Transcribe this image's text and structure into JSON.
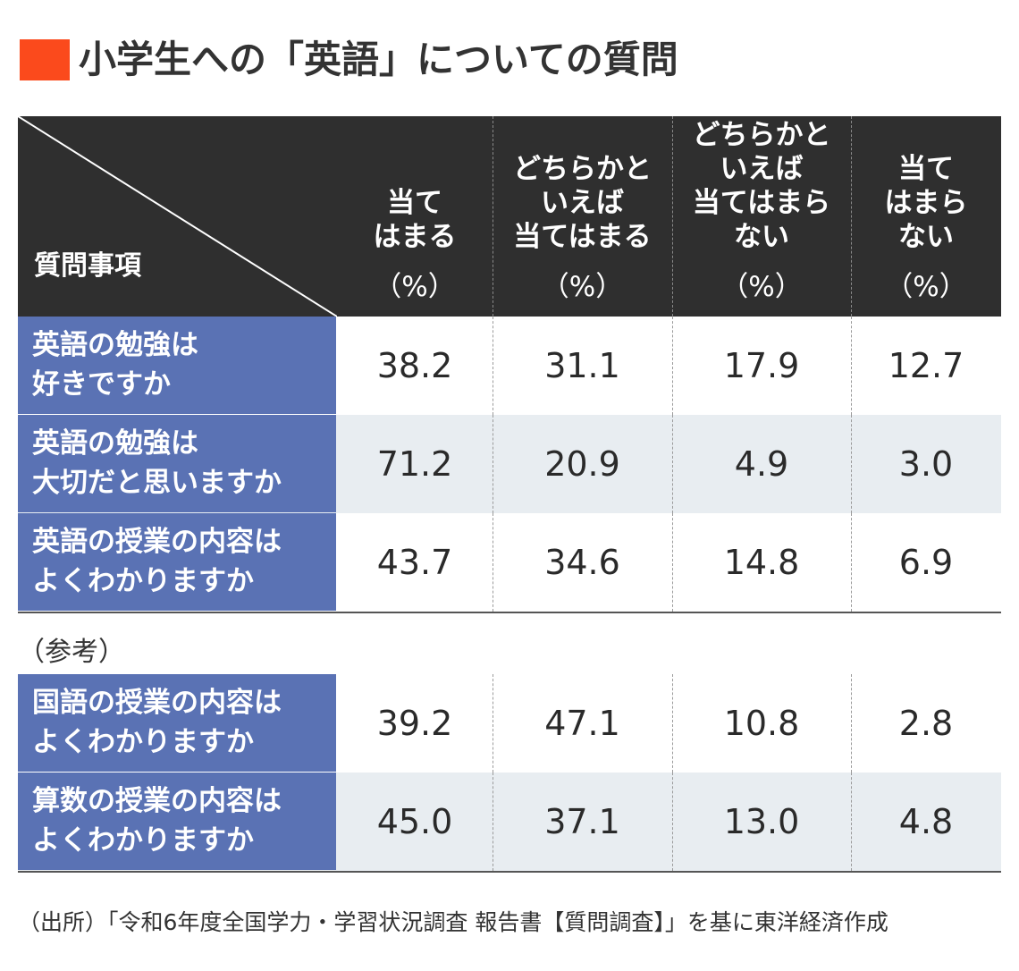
{
  "title": "小学生への「英語」についての質問",
  "colors": {
    "title_mark": "#fb4a1c",
    "header_bg": "#2f2f2f",
    "question_bg": "#5a72b4",
    "alt_row_bg": "#e8edf1"
  },
  "reference_label": "（参考）",
  "source": "（出所）「令和6年度全国学力・学習状況調査 報告書【質問調査】」を基に東洋経済作成",
  "chart_data": {
    "type": "table",
    "corner_label": "質問事項",
    "columns": [
      {
        "label": "当て\nはまる",
        "unit": "（%）"
      },
      {
        "label": "どちらかと\nいえば\n当てはまる",
        "unit": "（%）"
      },
      {
        "label": "どちらかと\nいえば\n当てはまら\nない",
        "unit": "（%）"
      },
      {
        "label": "当て\nはまら\nない",
        "unit": "（%）"
      }
    ],
    "rows": [
      {
        "question": "英語の勉強は\n好きですか",
        "values": [
          "38.2",
          "31.1",
          "17.9",
          "12.7"
        ]
      },
      {
        "question": "英語の勉強は\n大切だと思いますか",
        "values": [
          "71.2",
          "20.9",
          "4.9",
          "3.0"
        ]
      },
      {
        "question": "英語の授業の内容は\nよくわかりますか",
        "values": [
          "43.7",
          "34.6",
          "14.8",
          "6.9"
        ]
      }
    ],
    "reference_rows": [
      {
        "question": "国語の授業の内容は\nよくわかりますか",
        "values": [
          "39.2",
          "47.1",
          "10.8",
          "2.8"
        ]
      },
      {
        "question": "算数の授業の内容は\nよくわかりますか",
        "values": [
          "45.0",
          "37.1",
          "13.0",
          "4.8"
        ]
      }
    ]
  }
}
